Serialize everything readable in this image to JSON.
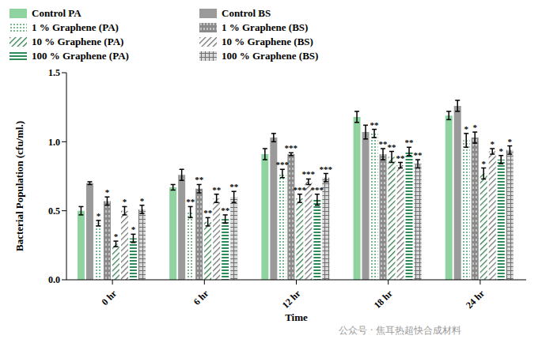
{
  "chart_data": {
    "type": "bar",
    "x_label": "Time",
    "y_label": "Bacterial Population (cfu/ml.)",
    "categories": [
      "0 hr",
      "6 hr",
      "12 hr",
      "18 hr",
      "24 hr"
    ],
    "ylim": [
      0,
      1.5
    ],
    "yticks": [
      {
        "value": 0,
        "label": "0.0"
      },
      {
        "value": 0.5,
        "label": "0.5"
      },
      {
        "value": 1,
        "label": "1.0"
      },
      {
        "value": 1.5,
        "label": "1.5"
      }
    ],
    "grid": false,
    "legend": "top",
    "annotations": [
      "公众号 · 焦耳热超快合成材料"
    ],
    "series": [
      {
        "name": "Control PA",
        "color": "#8fd3a0",
        "values": [
          0.5,
          0.67,
          0.91,
          1.18,
          1.19
        ],
        "errors": [
          0.03,
          0.02,
          0.04,
          0.04,
          0.03
        ],
        "significance": [
          null,
          null,
          null,
          null,
          null
        ]
      },
      {
        "name": "Control BS",
        "color": "#9a9a9a",
        "values": [
          0.7,
          0.76,
          1.03,
          1.07,
          1.26
        ],
        "errors": [
          0.01,
          0.04,
          0.03,
          0.05,
          0.04
        ],
        "significance": [
          null,
          null,
          null,
          null,
          null
        ]
      },
      {
        "name": "1 % Graphene (PA)",
        "color": "#3a9a5a",
        "values": [
          0.41,
          0.49,
          0.77,
          1.06,
          1.01
        ],
        "errors": [
          0.02,
          0.04,
          0.03,
          0.03,
          0.05
        ],
        "significance": [
          "*",
          "**",
          "***",
          "**",
          "*"
        ]
      },
      {
        "name": "1 % Graphene (BS)",
        "color": "#8a8a8a",
        "values": [
          0.57,
          0.66,
          0.91,
          0.91,
          1.03
        ],
        "errors": [
          0.03,
          0.03,
          0.01,
          0.04,
          0.04
        ],
        "significance": [
          "*",
          "**",
          "***",
          "**",
          "*"
        ]
      },
      {
        "name": "10 % Graphene (PA)",
        "color": "#2e7d4a",
        "values": [
          0.26,
          0.42,
          0.59,
          0.89,
          0.77
        ],
        "errors": [
          0.02,
          0.03,
          0.03,
          0.04,
          0.04
        ],
        "significance": [
          "*",
          "**",
          "***",
          "**",
          "*"
        ]
      },
      {
        "name": "10 % Graphene (BS)",
        "color": "#6f6f6f",
        "values": [
          0.5,
          0.59,
          0.71,
          0.83,
          0.93
        ],
        "errors": [
          0.03,
          0.03,
          0.02,
          0.02,
          0.02
        ],
        "significance": [
          "*",
          "**",
          "***",
          "**",
          "*"
        ]
      },
      {
        "name": "100 % Graphene (PA)",
        "color": "#2e8b57",
        "values": [
          0.3,
          0.44,
          0.58,
          0.93,
          0.87
        ],
        "errors": [
          0.03,
          0.03,
          0.04,
          0.03,
          0.03
        ],
        "significance": [
          "*",
          "**",
          "***",
          "**",
          "*"
        ]
      },
      {
        "name": "100 % Graphene (BS)",
        "color": "#707070",
        "values": [
          0.51,
          0.6,
          0.74,
          0.84,
          0.94
        ],
        "errors": [
          0.03,
          0.04,
          0.03,
          0.03,
          0.03
        ],
        "significance": [
          "*",
          "**",
          "***",
          "**",
          "*"
        ]
      }
    ]
  }
}
